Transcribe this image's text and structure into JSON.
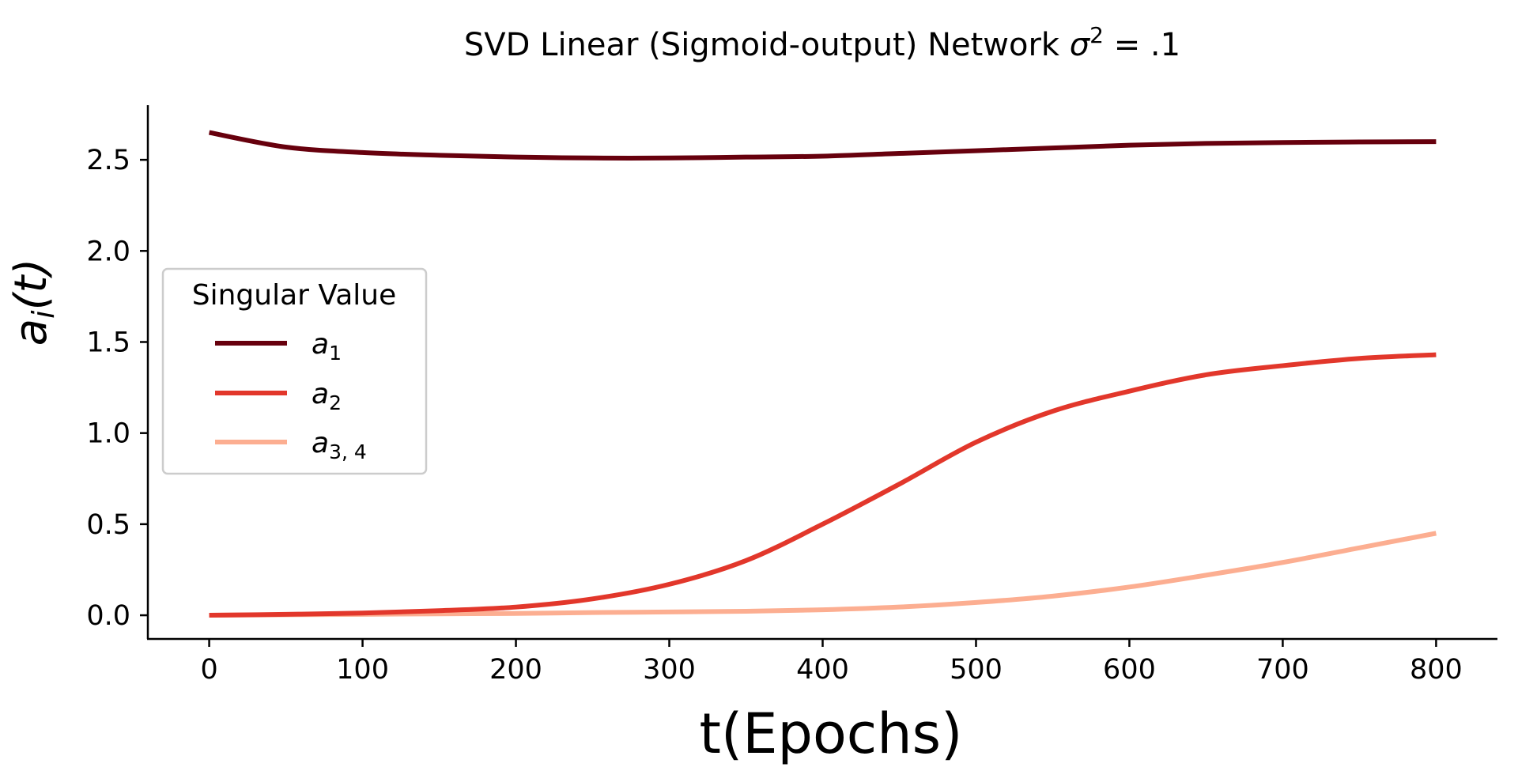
{
  "chart_data": {
    "type": "line",
    "title": "SVD Linear (Sigmoid-output) Network σ² = .1",
    "xlabel": "t(Epochs)",
    "ylabel": "a_i(t)",
    "xlim": [
      -40,
      840
    ],
    "ylim": [
      -0.13,
      2.8
    ],
    "xticks": [
      0,
      100,
      200,
      300,
      400,
      500,
      600,
      700,
      800
    ],
    "yticks": [
      0.0,
      0.5,
      1.0,
      1.5,
      2.0,
      2.5
    ],
    "xtick_labels": [
      "0",
      "100",
      "200",
      "300",
      "400",
      "500",
      "600",
      "700",
      "800"
    ],
    "ytick_labels": [
      "0.0",
      "0.5",
      "1.0",
      "1.5",
      "2.0",
      "2.5"
    ],
    "grid": false,
    "legend": {
      "title": "Singular Value",
      "placement": "center-left"
    },
    "x": [
      0,
      50,
      100,
      150,
      200,
      250,
      300,
      350,
      400,
      450,
      500,
      550,
      600,
      650,
      700,
      750,
      800
    ],
    "series": [
      {
        "name": "a1",
        "color": "#67000d",
        "values": [
          2.65,
          2.57,
          2.54,
          2.525,
          2.515,
          2.51,
          2.51,
          2.515,
          2.52,
          2.535,
          2.55,
          2.565,
          2.58,
          2.59,
          2.595,
          2.598,
          2.6
        ]
      },
      {
        "name": "a2",
        "color": "#e2372b",
        "values": [
          0.0,
          0.005,
          0.012,
          0.025,
          0.045,
          0.09,
          0.17,
          0.3,
          0.5,
          0.72,
          0.95,
          1.12,
          1.23,
          1.32,
          1.37,
          1.41,
          1.43
        ]
      },
      {
        "name": "a3,4",
        "color": "#fcae91",
        "values": [
          0.0,
          0.003,
          0.005,
          0.008,
          0.01,
          0.015,
          0.018,
          0.022,
          0.03,
          0.045,
          0.07,
          0.105,
          0.155,
          0.22,
          0.29,
          0.37,
          0.45
        ]
      }
    ]
  },
  "labels": {
    "title_prefix": "SVD Linear (Sigmoid-output) Network ",
    "title_sigma": "σ",
    "title_sup": "2",
    "title_suffix": " = .1",
    "xlabel": "t(Epochs)",
    "ylabel_a": "a",
    "ylabel_i": "i",
    "ylabel_t": "(t)",
    "legend_title": "Singular Value",
    "legend_items": [
      {
        "base": "a",
        "sub": "1"
      },
      {
        "base": "a",
        "sub": "2"
      },
      {
        "base": "a",
        "sub": "3, 4"
      }
    ]
  }
}
